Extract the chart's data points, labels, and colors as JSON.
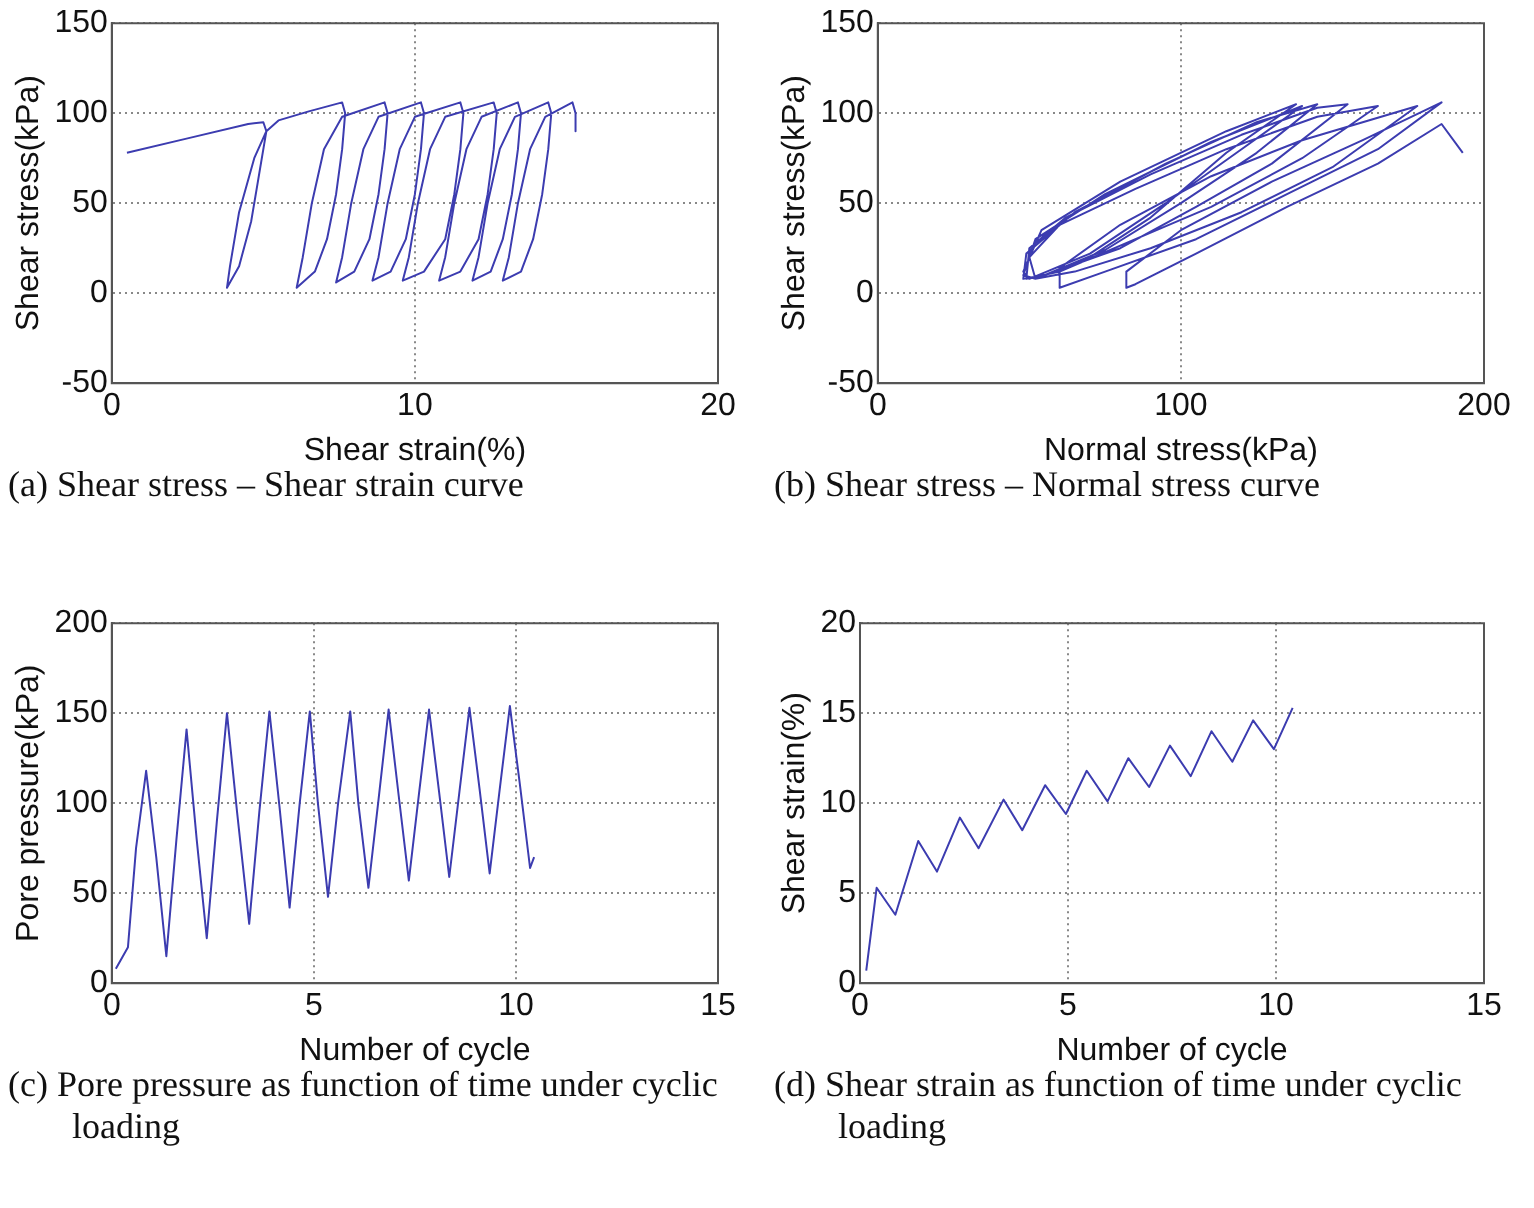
{
  "chart_data": [
    {
      "type": "line",
      "xlabel": "Shear strain(%)",
      "ylabel": "Shear stress(kPa)",
      "xlim": [
        0,
        20
      ],
      "xticks": [
        0,
        10,
        20
      ],
      "ylim": [
        -50,
        150
      ],
      "yticks": [
        -50,
        0,
        50,
        100,
        150
      ],
      "grid": true,
      "marker": "none",
      "line_style": "solid",
      "annotations": [
        "(a) Shear stress – Shear strain curve"
      ],
      "series": [
        {
          "color": "#3c3cb0",
          "x": [
            0.5,
            2.5,
            4.5,
            5.0,
            5.1,
            4.9,
            4.6,
            4.2,
            3.8,
            3.9,
            4.2,
            4.7,
            5.1,
            5.5,
            6.5,
            7.6,
            7.7,
            7.6,
            7.4,
            7.1,
            6.7,
            6.1,
            6.3,
            6.6,
            7.0,
            7.6,
            9.0,
            9.1,
            9.0,
            8.8,
            8.5,
            8.0,
            7.4,
            7.6,
            7.9,
            8.3,
            8.8,
            10.2,
            10.3,
            10.2,
            10.0,
            9.7,
            9.2,
            8.6,
            8.8,
            9.1,
            9.5,
            10.0,
            11.5,
            11.6,
            11.5,
            11.3,
            11.0,
            10.3,
            9.6,
            9.8,
            10.1,
            10.5,
            11.0,
            12.6,
            12.7,
            12.6,
            12.4,
            12.1,
            11.5,
            10.8,
            11.0,
            11.3,
            11.7,
            12.2,
            13.4,
            13.5,
            13.4,
            13.2,
            12.9,
            12.5,
            11.9,
            12.1,
            12.4,
            12.8,
            13.3,
            14.4,
            14.5,
            14.4,
            14.2,
            13.9,
            13.5,
            12.9,
            13.1,
            13.4,
            13.8,
            14.3,
            15.2,
            15.3,
            15.3
          ],
          "values": [
            78,
            86,
            94,
            95,
            90,
            70,
            40,
            15,
            3,
            15,
            45,
            75,
            90,
            96,
            101,
            106,
            100,
            80,
            55,
            30,
            12,
            3,
            20,
            50,
            80,
            98,
            106,
            100,
            80,
            55,
            30,
            12,
            6,
            20,
            50,
            80,
            98,
            106,
            100,
            80,
            55,
            30,
            12,
            7,
            20,
            50,
            80,
            98,
            106,
            100,
            80,
            55,
            30,
            12,
            7,
            20,
            50,
            80,
            98,
            106,
            100,
            80,
            55,
            30,
            12,
            7,
            20,
            50,
            80,
            98,
            106,
            100,
            80,
            55,
            30,
            12,
            7,
            20,
            50,
            80,
            98,
            106,
            100,
            80,
            55,
            30,
            12,
            7,
            20,
            50,
            80,
            98,
            106,
            100,
            90
          ]
        }
      ]
    },
    {
      "type": "line",
      "xlabel": "Normal stress(kPa)",
      "ylabel": "Shear stress(kPa)",
      "xlim": [
        0,
        200
      ],
      "xticks": [
        0,
        100,
        200
      ],
      "ylim": [
        -50,
        150
      ],
      "yticks": [
        -50,
        0,
        50,
        100,
        150
      ],
      "grid": true,
      "marker": "none",
      "line_style": "solid",
      "annotations": [
        "(b) Shear stress – Normal stress curve"
      ],
      "series": [
        {
          "color": "#3c3cb0",
          "x": [
            193,
            186,
            165,
            135,
            105,
            85,
            82,
            82,
            100,
            130,
            160,
            186,
            165,
            135,
            105,
            75,
            60,
            60,
            80,
            110,
            140,
            178,
            150,
            120,
            90,
            65,
            52,
            50,
            60,
            85,
            115,
            145,
            165,
            140,
            110,
            85,
            60,
            49,
            50,
            62,
            90,
            120,
            145,
            155,
            130,
            105,
            80,
            55,
            48,
            49,
            65,
            95,
            125,
            145,
            125,
            100,
            75,
            52,
            48,
            52,
            75,
            110,
            140,
            120,
            95,
            70,
            50,
            48,
            54,
            80,
            115,
            138,
            115,
            90,
            70,
            52
          ],
          "values": [
            78,
            94,
            72,
            48,
            22,
            5,
            3,
            12,
            35,
            62,
            85,
            106,
            80,
            55,
            30,
            12,
            3,
            14,
            38,
            65,
            85,
            104,
            70,
            45,
            25,
            12,
            8,
            20,
            38,
            58,
            80,
            98,
            104,
            75,
            48,
            30,
            12,
            8,
            25,
            42,
            66,
            88,
            103,
            105,
            72,
            48,
            25,
            10,
            8,
            22,
            45,
            72,
            95,
            105,
            78,
            50,
            24,
            8,
            10,
            30,
            55,
            84,
            104,
            80,
            50,
            22,
            8,
            12,
            35,
            62,
            90,
            105,
            78,
            42,
            20,
            8
          ]
        }
      ]
    },
    {
      "type": "line",
      "xlabel": "Number of cycle",
      "ylabel": "Pore pressure(kPa)",
      "xlim": [
        0,
        15
      ],
      "xticks": [
        0,
        5,
        10,
        15
      ],
      "ylim": [
        0,
        200
      ],
      "yticks": [
        0,
        50,
        100,
        150,
        200
      ],
      "grid": true,
      "marker": "none",
      "line_style": "solid",
      "annotations": [
        "(c) Pore pressure as function of time under cyclic loading"
      ],
      "series": [
        {
          "color": "#3c3cb0",
          "x": [
            0.1,
            0.4,
            0.6,
            0.85,
            1.1,
            1.35,
            1.6,
            1.85,
            2.1,
            2.35,
            2.6,
            2.85,
            3.1,
            3.4,
            3.65,
            3.9,
            4.15,
            4.4,
            4.65,
            4.9,
            5.1,
            5.35,
            5.6,
            5.9,
            6.1,
            6.35,
            6.6,
            6.85,
            7.1,
            7.35,
            7.6,
            7.85,
            8.1,
            8.35,
            8.6,
            8.85,
            9.1,
            9.35,
            9.6,
            9.85,
            10.1,
            10.35,
            10.45
          ],
          "values": [
            8,
            20,
            75,
            118,
            70,
            15,
            80,
            141,
            80,
            25,
            90,
            150,
            95,
            33,
            95,
            151,
            98,
            42,
            100,
            151,
            100,
            48,
            100,
            151,
            100,
            53,
            102,
            152,
            104,
            57,
            105,
            152,
            106,
            59,
            106,
            153,
            108,
            61,
            108,
            154,
            110,
            64,
            70
          ]
        }
      ]
    },
    {
      "type": "line",
      "xlabel": "Number of cycle",
      "ylabel": "Shear strain(%)",
      "xlim": [
        0,
        15
      ],
      "xticks": [
        0,
        5,
        10,
        15
      ],
      "ylim": [
        0,
        20
      ],
      "yticks": [
        0,
        5,
        10,
        15,
        20
      ],
      "grid": true,
      "marker": "none",
      "line_style": "solid",
      "annotations": [
        "(d) Shear strain as function of time under cyclic loading"
      ],
      "series": [
        {
          "color": "#3c3cb0",
          "x": [
            0.15,
            0.4,
            0.85,
            1.4,
            1.85,
            2.4,
            2.85,
            3.45,
            3.9,
            4.45,
            4.95,
            5.45,
            5.95,
            6.45,
            6.95,
            7.45,
            7.95,
            8.45,
            8.95,
            9.45,
            9.95,
            10.4
          ],
          "values": [
            0.7,
            5.3,
            3.8,
            7.9,
            6.2,
            9.2,
            7.5,
            10.2,
            8.5,
            11.0,
            9.4,
            11.8,
            10.1,
            12.5,
            10.9,
            13.2,
            11.5,
            14.0,
            12.3,
            14.6,
            13.0,
            15.3
          ]
        }
      ]
    }
  ]
}
